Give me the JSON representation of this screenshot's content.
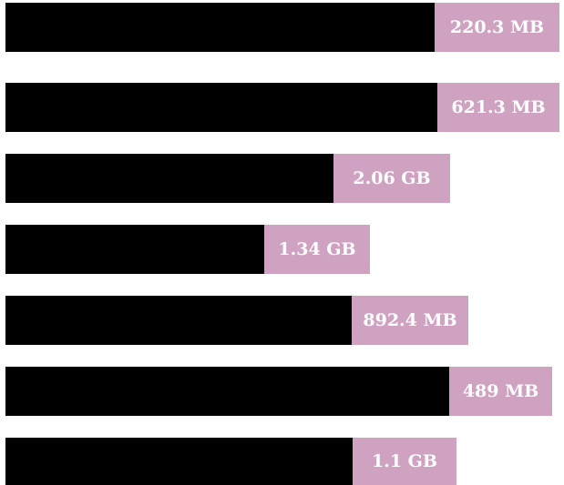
{
  "items": [
    {
      "label": "220.3 MB"
    },
    {
      "label": "621.3 MB"
    },
    {
      "label": "2.06 GB"
    },
    {
      "label": "1.34 GB"
    },
    {
      "label": "892.4 MB"
    },
    {
      "label": "489 MB"
    },
    {
      "label": "1.1 GB"
    }
  ]
}
